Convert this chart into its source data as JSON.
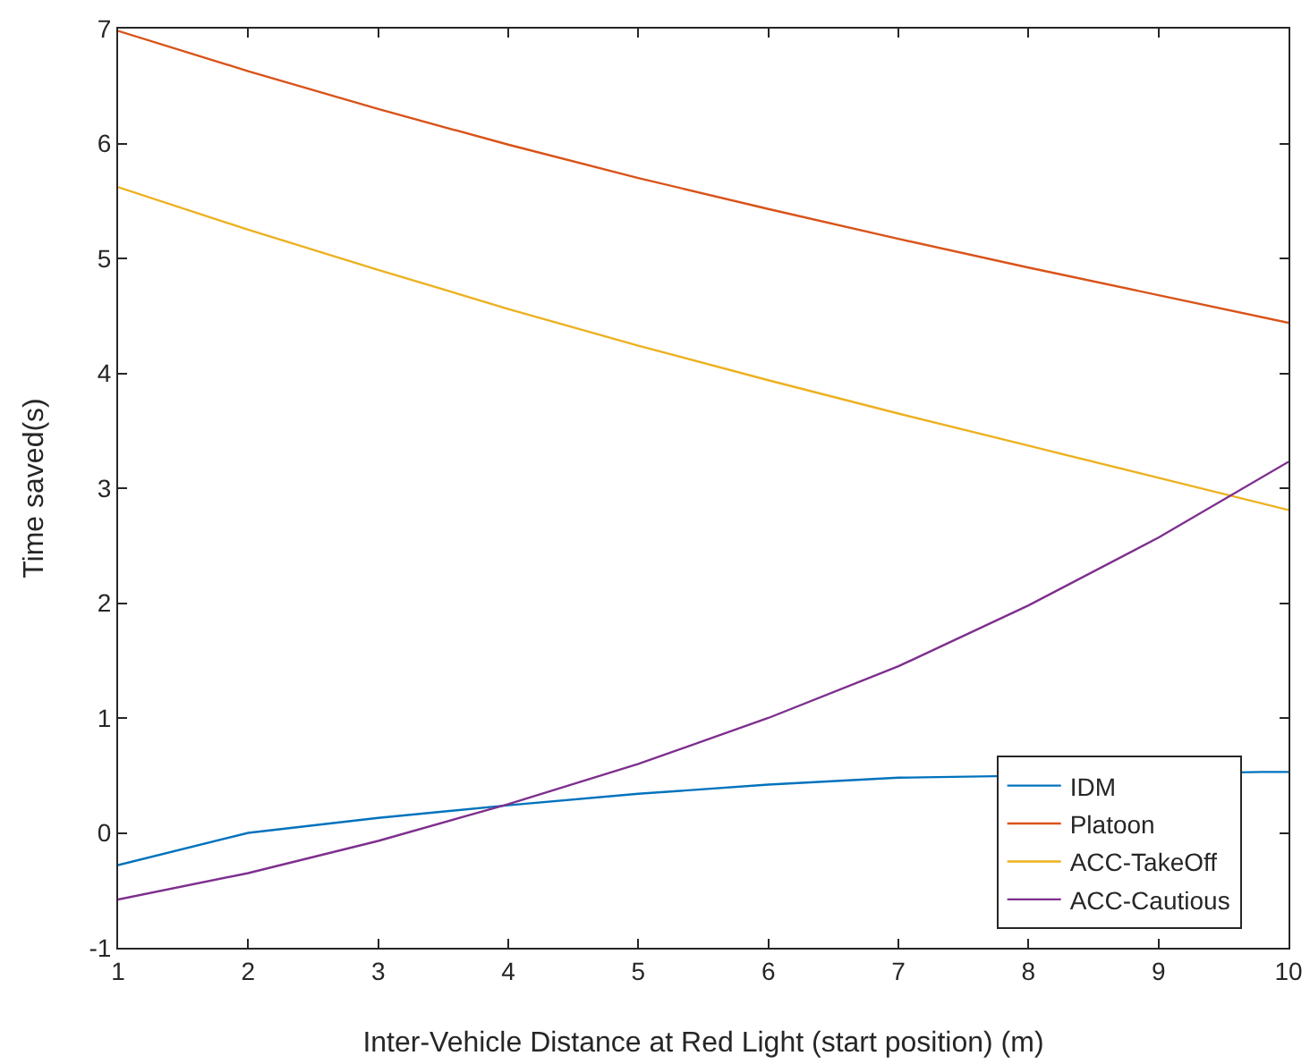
{
  "chart_data": {
    "type": "line",
    "xlabel": "Inter-Vehicle Distance at Red Light (start position) (m)",
    "ylabel": "Time saved(s)",
    "x": [
      1,
      2,
      3,
      4,
      5,
      6,
      7,
      8,
      9,
      10
    ],
    "xlim": [
      1,
      10
    ],
    "xticks": [
      1,
      2,
      3,
      4,
      5,
      6,
      7,
      8,
      9,
      10
    ],
    "ylim": [
      -1,
      7
    ],
    "yticks": [
      -1,
      0,
      1,
      2,
      3,
      4,
      5,
      6,
      7
    ],
    "grid": false,
    "legend": "bottom right",
    "marker": "none",
    "line_style": "solid",
    "series": [
      {
        "name": "IDM",
        "color": "#0072bd",
        "x": [
          1,
          2,
          3,
          4,
          5,
          6,
          7,
          9.8,
          10
        ],
        "values": [
          -0.28,
          0.0,
          0.13,
          0.24,
          0.34,
          0.42,
          0.48,
          0.53,
          0.53
        ]
      },
      {
        "name": "Platoon",
        "color": "#d95319",
        "values": [
          6.98,
          6.63,
          6.3,
          5.99,
          5.7,
          5.43,
          5.17,
          4.92,
          4.68,
          4.44
        ]
      },
      {
        "name": "ACC-TakeOff",
        "color": "#edb120",
        "values": [
          5.62,
          5.25,
          4.9,
          4.56,
          4.24,
          3.94,
          3.65,
          3.37,
          3.09,
          2.81
        ]
      },
      {
        "name": "ACC-Cautious",
        "color": "#7e2f8e",
        "values": [
          -0.58,
          -0.35,
          -0.07,
          0.25,
          0.6,
          1.0,
          1.45,
          1.98,
          2.57,
          3.23
        ]
      }
    ]
  }
}
